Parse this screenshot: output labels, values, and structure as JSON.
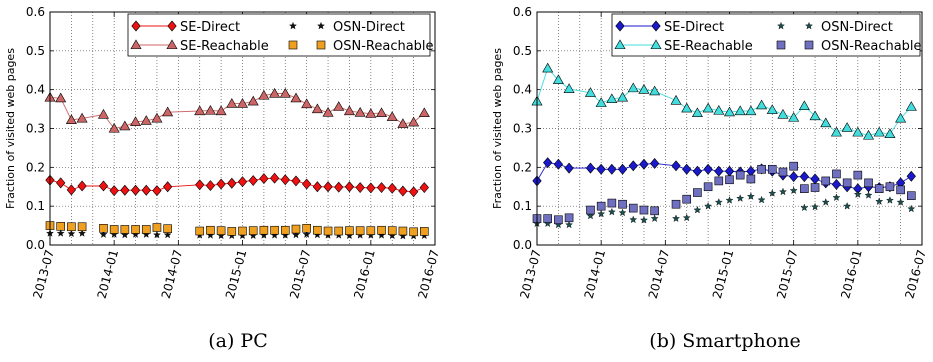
{
  "chart_data": [
    {
      "type": "line",
      "caption": "(a) PC",
      "ylabel": "Fraction of visited web pages",
      "ylim": [
        0,
        0.6
      ],
      "yticks": [
        0.0,
        0.1,
        0.2,
        0.3,
        0.4,
        0.5,
        0.6
      ],
      "ytick_labels": [
        "0.0",
        "0.1",
        "0.2",
        "0.3",
        "0.4",
        "0.5",
        "0.6"
      ],
      "xlim": [
        "2013-07",
        "2016-07"
      ],
      "xtick_labels": [
        "2013-07",
        "2014-01",
        "2014-07",
        "2015-01",
        "2015-07",
        "2016-01",
        "2016-07"
      ],
      "grid": true,
      "legend": "top",
      "series": [
        {
          "name": "SE-Direct",
          "color": "#ee1111",
          "marker": "diamond",
          "line": true,
          "x": [
            "2013-07",
            "2013-08",
            "2013-09",
            "2013-10",
            "2013-12",
            "2014-01",
            "2014-02",
            "2014-03",
            "2014-04",
            "2014-05",
            "2014-06",
            "2014-09",
            "2014-10",
            "2014-11",
            "2014-12",
            "2015-01",
            "2015-02",
            "2015-03",
            "2015-04",
            "2015-05",
            "2015-06",
            "2015-07",
            "2015-08",
            "2015-09",
            "2015-10",
            "2015-11",
            "2015-12",
            "2016-01",
            "2016-02",
            "2016-03",
            "2016-04",
            "2016-05",
            "2016-06"
          ],
          "y": [
            0.167,
            0.16,
            0.142,
            0.152,
            0.152,
            0.14,
            0.141,
            0.141,
            0.141,
            0.14,
            0.15,
            0.155,
            0.153,
            0.157,
            0.159,
            0.163,
            0.166,
            0.171,
            0.172,
            0.168,
            0.165,
            0.157,
            0.15,
            0.15,
            0.149,
            0.15,
            0.148,
            0.147,
            0.148,
            0.146,
            0.139,
            0.137,
            0.148
          ]
        },
        {
          "name": "SE-Reachable",
          "color": "#cc6666",
          "marker": "triangle",
          "line": true,
          "x": [
            "2013-07",
            "2013-08",
            "2013-09",
            "2013-10",
            "2013-12",
            "2014-01",
            "2014-02",
            "2014-03",
            "2014-04",
            "2014-05",
            "2014-06",
            "2014-09",
            "2014-10",
            "2014-11",
            "2014-12",
            "2015-01",
            "2015-02",
            "2015-03",
            "2015-04",
            "2015-05",
            "2015-06",
            "2015-07",
            "2015-08",
            "2015-09",
            "2015-10",
            "2015-11",
            "2015-12",
            "2016-01",
            "2016-02",
            "2016-03",
            "2016-04",
            "2016-05",
            "2016-06"
          ],
          "y": [
            0.38,
            0.378,
            0.322,
            0.326,
            0.336,
            0.3,
            0.306,
            0.317,
            0.32,
            0.326,
            0.342,
            0.345,
            0.346,
            0.345,
            0.364,
            0.364,
            0.37,
            0.385,
            0.39,
            0.39,
            0.378,
            0.363,
            0.35,
            0.341,
            0.356,
            0.345,
            0.341,
            0.338,
            0.34,
            0.33,
            0.312,
            0.316,
            0.34
          ]
        },
        {
          "name": "OSN-Direct",
          "color": "#111111",
          "marker": "star",
          "line": false,
          "x": [
            "2013-07",
            "2013-08",
            "2013-09",
            "2013-10",
            "2013-12",
            "2014-01",
            "2014-02",
            "2014-03",
            "2014-04",
            "2014-05",
            "2014-06",
            "2014-09",
            "2014-10",
            "2014-11",
            "2014-12",
            "2015-01",
            "2015-02",
            "2015-03",
            "2015-04",
            "2015-05",
            "2015-06",
            "2015-07",
            "2015-08",
            "2015-09",
            "2015-10",
            "2015-11",
            "2015-12",
            "2016-01",
            "2016-02",
            "2016-03",
            "2016-04",
            "2016-05",
            "2016-06"
          ],
          "y": [
            0.03,
            0.03,
            0.029,
            0.03,
            0.027,
            0.027,
            0.026,
            0.027,
            0.027,
            0.026,
            0.026,
            0.025,
            0.025,
            0.024,
            0.024,
            0.024,
            0.024,
            0.025,
            0.025,
            0.025,
            0.026,
            0.027,
            0.026,
            0.025,
            0.025,
            0.024,
            0.025,
            0.025,
            0.025,
            0.024,
            0.023,
            0.023,
            0.024
          ]
        },
        {
          "name": "OSN-Reachable",
          "color": "#f0a020",
          "marker": "square",
          "line": false,
          "x": [
            "2013-07",
            "2013-08",
            "2013-09",
            "2013-10",
            "2013-12",
            "2014-01",
            "2014-02",
            "2014-03",
            "2014-04",
            "2014-05",
            "2014-06",
            "2014-09",
            "2014-10",
            "2014-11",
            "2014-12",
            "2015-01",
            "2015-02",
            "2015-03",
            "2015-04",
            "2015-05",
            "2015-06",
            "2015-07",
            "2015-08",
            "2015-09",
            "2015-10",
            "2015-11",
            "2015-12",
            "2016-01",
            "2016-02",
            "2016-03",
            "2016-04",
            "2016-05",
            "2016-06"
          ],
          "y": [
            0.05,
            0.048,
            0.047,
            0.047,
            0.043,
            0.04,
            0.04,
            0.04,
            0.04,
            0.045,
            0.042,
            0.036,
            0.038,
            0.037,
            0.035,
            0.036,
            0.037,
            0.038,
            0.038,
            0.038,
            0.041,
            0.043,
            0.038,
            0.036,
            0.036,
            0.037,
            0.037,
            0.037,
            0.038,
            0.037,
            0.036,
            0.034,
            0.035
          ]
        }
      ]
    },
    {
      "type": "line",
      "caption": "(b) Smartphone",
      "ylabel": "Fraction of visited web pages",
      "ylim": [
        0,
        0.6
      ],
      "yticks": [
        0.0,
        0.1,
        0.2,
        0.3,
        0.4,
        0.5,
        0.6
      ],
      "ytick_labels": [
        "0.0",
        "0.1",
        "0.2",
        "0.3",
        "0.4",
        "0.5",
        "0.6"
      ],
      "xlim": [
        "2013-07",
        "2016-07"
      ],
      "xtick_labels": [
        "2013-07",
        "2014-01",
        "2014-07",
        "2015-01",
        "2015-07",
        "2016-01",
        "2016-07"
      ],
      "grid": true,
      "legend": "top",
      "series": [
        {
          "name": "SE-Direct",
          "color": "#1a1acc",
          "marker": "diamond",
          "line": true,
          "x": [
            "2013-07",
            "2013-08",
            "2013-09",
            "2013-10",
            "2013-12",
            "2014-01",
            "2014-02",
            "2014-03",
            "2014-04",
            "2014-05",
            "2014-06",
            "2014-08",
            "2014-09",
            "2014-10",
            "2014-11",
            "2014-12",
            "2015-01",
            "2015-02",
            "2015-03",
            "2015-04",
            "2015-05",
            "2015-06",
            "2015-07",
            "2015-08",
            "2015-09",
            "2015-10",
            "2015-11",
            "2015-12",
            "2016-01",
            "2016-02",
            "2016-03",
            "2016-04",
            "2016-05",
            "2016-06"
          ],
          "y": [
            0.165,
            0.212,
            0.208,
            0.198,
            0.198,
            0.195,
            0.195,
            0.195,
            0.204,
            0.208,
            0.21,
            0.204,
            0.195,
            0.19,
            0.195,
            0.19,
            0.19,
            0.188,
            0.19,
            0.196,
            0.19,
            0.18,
            0.176,
            0.176,
            0.17,
            0.16,
            0.156,
            0.15,
            0.145,
            0.15,
            0.148,
            0.15,
            0.16,
            0.177
          ]
        },
        {
          "name": "SE-Reachable",
          "color": "#44dddd",
          "marker": "triangle",
          "line": true,
          "x": [
            "2013-07",
            "2013-08",
            "2013-09",
            "2013-10",
            "2013-12",
            "2014-01",
            "2014-02",
            "2014-03",
            "2014-04",
            "2014-05",
            "2014-06",
            "2014-08",
            "2014-09",
            "2014-10",
            "2014-11",
            "2014-12",
            "2015-01",
            "2015-02",
            "2015-03",
            "2015-04",
            "2015-05",
            "2015-06",
            "2015-07",
            "2015-08",
            "2015-09",
            "2015-10",
            "2015-11",
            "2015-12",
            "2016-01",
            "2016-02",
            "2016-03",
            "2016-04",
            "2016-05",
            "2016-06"
          ],
          "y": [
            0.37,
            0.455,
            0.425,
            0.402,
            0.392,
            0.366,
            0.376,
            0.38,
            0.404,
            0.4,
            0.396,
            0.372,
            0.352,
            0.34,
            0.352,
            0.346,
            0.342,
            0.345,
            0.345,
            0.36,
            0.348,
            0.336,
            0.328,
            0.358,
            0.332,
            0.314,
            0.29,
            0.302,
            0.29,
            0.282,
            0.29,
            0.286,
            0.326,
            0.356
          ]
        },
        {
          "name": "OSN-Direct",
          "color": "#1a5050",
          "marker": "star",
          "line": false,
          "x": [
            "2013-07",
            "2013-08",
            "2013-09",
            "2013-10",
            "2013-12",
            "2014-01",
            "2014-02",
            "2014-03",
            "2014-04",
            "2014-05",
            "2014-06",
            "2014-08",
            "2014-09",
            "2014-10",
            "2014-11",
            "2014-12",
            "2015-01",
            "2015-02",
            "2015-03",
            "2015-04",
            "2015-05",
            "2015-06",
            "2015-07",
            "2015-08",
            "2015-09",
            "2015-10",
            "2015-11",
            "2015-12",
            "2016-01",
            "2016-02",
            "2016-03",
            "2016-04",
            "2016-05",
            "2016-06"
          ],
          "y": [
            0.055,
            0.055,
            0.052,
            0.052,
            0.075,
            0.08,
            0.085,
            0.083,
            0.065,
            0.064,
            0.068,
            0.068,
            0.07,
            0.09,
            0.1,
            0.11,
            0.115,
            0.12,
            0.125,
            0.116,
            0.133,
            0.137,
            0.14,
            0.096,
            0.098,
            0.11,
            0.122,
            0.1,
            0.13,
            0.128,
            0.112,
            0.115,
            0.11,
            0.093
          ]
        },
        {
          "name": "OSN-Reachable",
          "color": "#7070c0",
          "marker": "square",
          "line": false,
          "x": [
            "2013-07",
            "2013-08",
            "2013-09",
            "2013-10",
            "2013-12",
            "2014-01",
            "2014-02",
            "2014-03",
            "2014-04",
            "2014-05",
            "2014-06",
            "2014-08",
            "2014-09",
            "2014-10",
            "2014-11",
            "2014-12",
            "2015-01",
            "2015-02",
            "2015-03",
            "2015-04",
            "2015-05",
            "2015-06",
            "2015-07",
            "2015-08",
            "2015-09",
            "2015-10",
            "2015-11",
            "2015-12",
            "2016-01",
            "2016-02",
            "2016-03",
            "2016-04",
            "2016-05",
            "2016-06"
          ],
          "y": [
            0.068,
            0.068,
            0.065,
            0.07,
            0.09,
            0.1,
            0.108,
            0.105,
            0.095,
            0.09,
            0.088,
            0.105,
            0.118,
            0.135,
            0.15,
            0.165,
            0.168,
            0.18,
            0.17,
            0.195,
            0.195,
            0.188,
            0.203,
            0.145,
            0.148,
            0.165,
            0.183,
            0.16,
            0.18,
            0.16,
            0.145,
            0.15,
            0.142,
            0.127
          ]
        }
      ]
    }
  ]
}
